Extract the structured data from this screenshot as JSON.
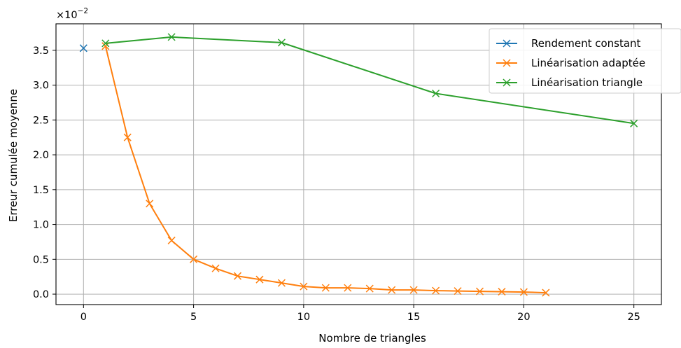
{
  "chart_data": {
    "type": "line",
    "title": "",
    "xlabel": "Nombre de triangles",
    "ylabel": "Erreur cumulée moyenne",
    "y_multiplier_text": "×10",
    "y_multiplier_exp": "−2",
    "xlim": [
      -1.25,
      26.25
    ],
    "ylim": [
      -0.15,
      3.88
    ],
    "x_ticks": [
      0,
      5,
      10,
      15,
      20,
      25
    ],
    "x_tick_labels": [
      "0",
      "5",
      "10",
      "15",
      "20",
      "25"
    ],
    "y_ticks": [
      0.0,
      0.5,
      1.0,
      1.5,
      2.0,
      2.5,
      3.0,
      3.5
    ],
    "y_tick_labels": [
      "0.0",
      "0.5",
      "1.0",
      "1.5",
      "2.0",
      "2.5",
      "3.0",
      "3.5"
    ],
    "grid": true,
    "legend_position": "top-right",
    "series": [
      {
        "name": "Rendement constant",
        "color": "#1f77b4",
        "marker": "x",
        "x": [
          0
        ],
        "y": [
          3.53
        ]
      },
      {
        "name": "Linéarisation adaptée",
        "color": "#ff7f0e",
        "marker": "x",
        "x": [
          1,
          2,
          3,
          4,
          5,
          6,
          7,
          8,
          9,
          10,
          11,
          12,
          13,
          14,
          15,
          16,
          17,
          18,
          19,
          20,
          21
        ],
        "y": [
          3.56,
          2.25,
          1.3,
          0.77,
          0.5,
          0.37,
          0.26,
          0.21,
          0.16,
          0.11,
          0.09,
          0.09,
          0.08,
          0.06,
          0.06,
          0.05,
          0.045,
          0.04,
          0.035,
          0.03,
          0.02
        ]
      },
      {
        "name": "Linéarisation triangle",
        "color": "#2ca02c",
        "marker": "x",
        "x": [
          1,
          4,
          9,
          16,
          25
        ],
        "y": [
          3.6,
          3.69,
          3.61,
          2.88,
          2.45
        ]
      }
    ]
  }
}
